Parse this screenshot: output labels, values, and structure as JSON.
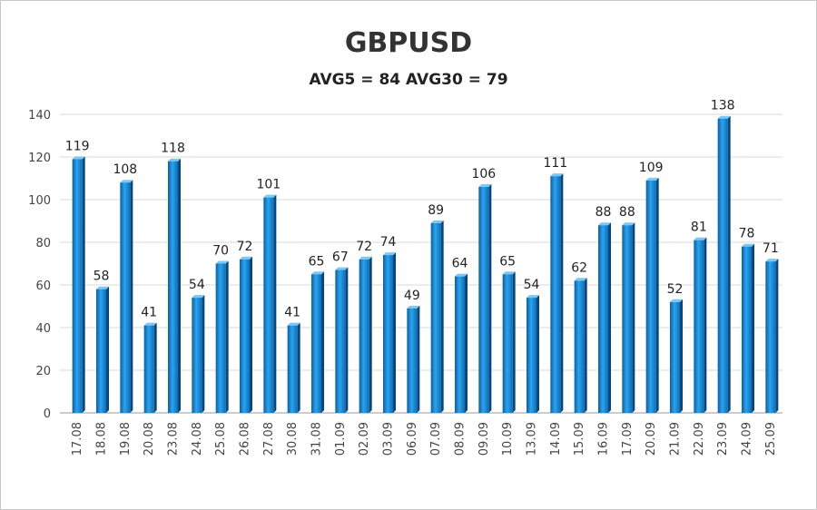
{
  "chart_data": {
    "type": "bar",
    "title": "GBPUSD",
    "subtitle": "AVG5 = 84 AVG30 = 79",
    "xlabel": "",
    "ylabel": "",
    "ylim": [
      0,
      140
    ],
    "yticks": [
      0,
      20,
      40,
      60,
      80,
      100,
      120,
      140
    ],
    "grid": true,
    "legend": "none",
    "categories": [
      "17.08",
      "18.08",
      "19.08",
      "20.08",
      "23.08",
      "24.08",
      "25.08",
      "26.08",
      "27.08",
      "30.08",
      "31.08",
      "01.09",
      "02.09",
      "03.09",
      "06.09",
      "07.09",
      "08.09",
      "09.09",
      "10.09",
      "13.09",
      "14.09",
      "15.09",
      "16.09",
      "17.09",
      "20.09",
      "21.09",
      "22.09",
      "23.09",
      "24.09",
      "25.09"
    ],
    "values": [
      119,
      58,
      108,
      41,
      118,
      54,
      70,
      72,
      101,
      41,
      65,
      67,
      72,
      74,
      49,
      89,
      64,
      106,
      65,
      54,
      111,
      62,
      88,
      88,
      109,
      52,
      81,
      138,
      78,
      71
    ],
    "bar_color": "#1a8fd6"
  }
}
